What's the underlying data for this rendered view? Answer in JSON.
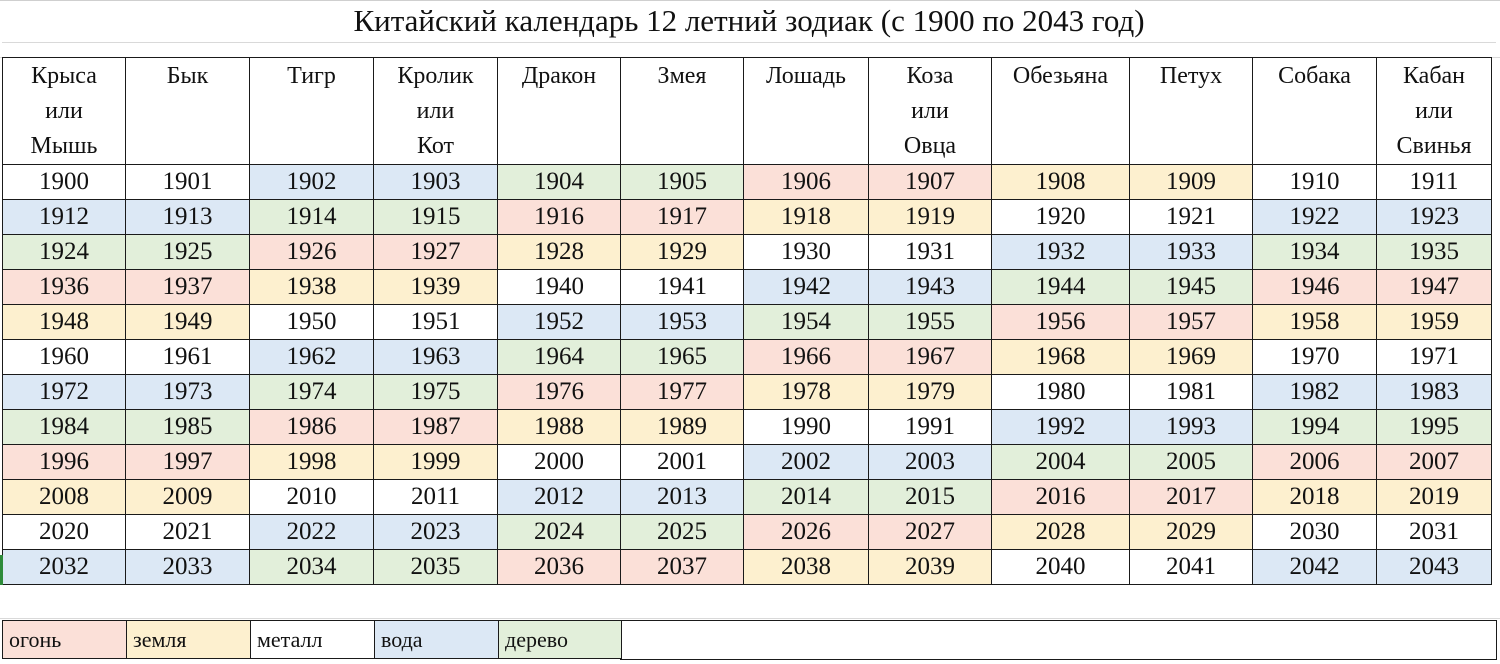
{
  "title": "Китайский календарь 12 летний зодиак (с 1900 по 2043 год)",
  "headers": [
    [
      "Крыса",
      "или",
      "Мышь"
    ],
    [
      "Бык"
    ],
    [
      "Тигр"
    ],
    [
      "Кролик",
      "или",
      "Кот"
    ],
    [
      "Дракон"
    ],
    [
      "Змея"
    ],
    [
      "Лошадь"
    ],
    [
      "Коза",
      "или",
      "Овца"
    ],
    [
      "Обезьяна"
    ],
    [
      "Петух"
    ],
    [
      "Собака"
    ],
    [
      "Кабан",
      "или",
      "Свинья"
    ]
  ],
  "rows": [
    [
      "1900",
      "1901",
      "1902",
      "1903",
      "1904",
      "1905",
      "1906",
      "1907",
      "1908",
      "1909",
      "1910",
      "1911"
    ],
    [
      "1912",
      "1913",
      "1914",
      "1915",
      "1916",
      "1917",
      "1918",
      "1919",
      "1920",
      "1921",
      "1922",
      "1923"
    ],
    [
      "1924",
      "1925",
      "1926",
      "1927",
      "1928",
      "1929",
      "1930",
      "1931",
      "1932",
      "1933",
      "1934",
      "1935"
    ],
    [
      "1936",
      "1937",
      "1938",
      "1939",
      "1940",
      "1941",
      "1942",
      "1943",
      "1944",
      "1945",
      "1946",
      "1947"
    ],
    [
      "1948",
      "1949",
      "1950",
      "1951",
      "1952",
      "1953",
      "1954",
      "1955",
      "1956",
      "1957",
      "1958",
      "1959"
    ],
    [
      "1960",
      "1961",
      "1962",
      "1963",
      "1964",
      "1965",
      "1966",
      "1967",
      "1968",
      "1969",
      "1970",
      "1971"
    ],
    [
      "1972",
      "1973",
      "1974",
      "1975",
      "1976",
      "1977",
      "1978",
      "1979",
      "1980",
      "1981",
      "1982",
      "1983"
    ],
    [
      "1984",
      "1985",
      "1986",
      "1987",
      "1988",
      "1989",
      "1990",
      "1991",
      "1992",
      "1993",
      "1994",
      "1995"
    ],
    [
      "1996",
      "1997",
      "1998",
      "1999",
      "2000",
      "2001",
      "2002",
      "2003",
      "2004",
      "2005",
      "2006",
      "2007"
    ],
    [
      "2008",
      "2009",
      "2010",
      "2011",
      "2012",
      "2013",
      "2014",
      "2015",
      "2016",
      "2017",
      "2018",
      "2019"
    ],
    [
      "2020",
      "2021",
      "2022",
      "2023",
      "2024",
      "2025",
      "2026",
      "2027",
      "2028",
      "2029",
      "2030",
      "2031"
    ],
    [
      "2032",
      "2033",
      "2034",
      "2035",
      "2036",
      "2037",
      "2038",
      "2039",
      "2040",
      "2041",
      "2042",
      "2043"
    ]
  ],
  "element_cycle": [
    "metal",
    "water",
    "wood",
    "fire",
    "earth"
  ],
  "legend": [
    {
      "key": "fire",
      "label": "огонь",
      "color": "#fbe0d8"
    },
    {
      "key": "earth",
      "label": "земля",
      "color": "#fdf0cf"
    },
    {
      "key": "metal",
      "label": "металл",
      "color": "#ffffff"
    },
    {
      "key": "water",
      "label": "вода",
      "color": "#dce8f5"
    },
    {
      "key": "wood",
      "label": "дерево",
      "color": "#e2efda"
    }
  ]
}
